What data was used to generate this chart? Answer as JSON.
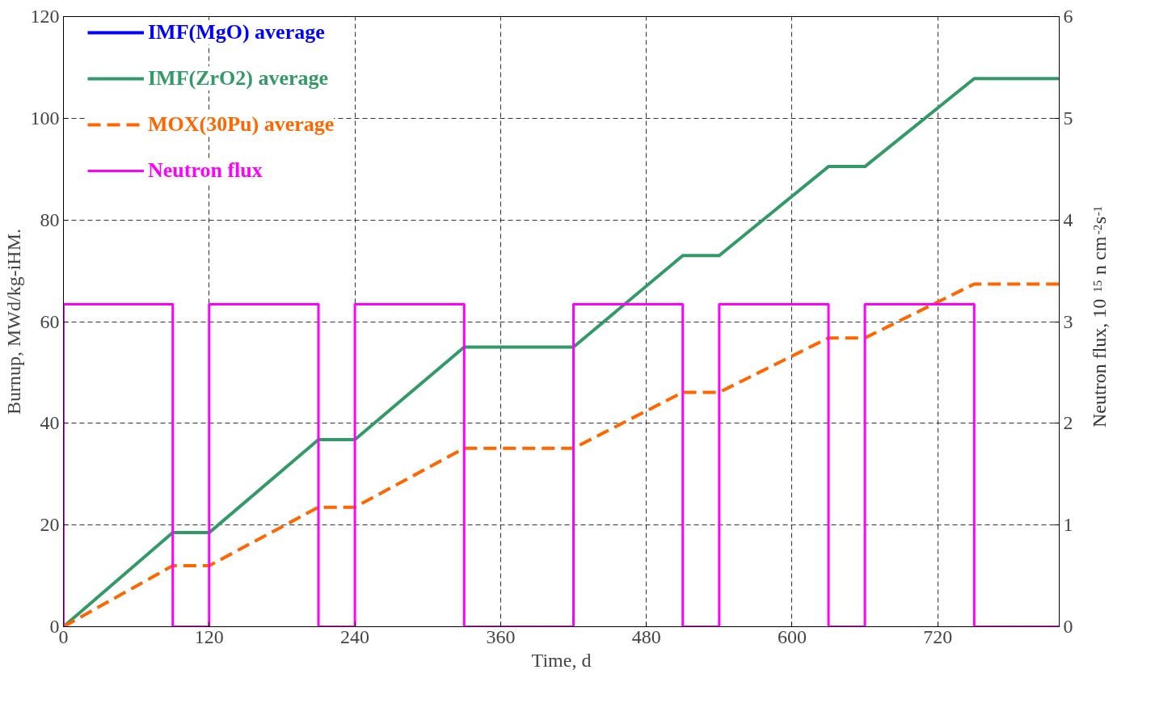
{
  "chart_data": {
    "type": "line",
    "xlabel": "Time, d",
    "ylabel": "Burnup, MWd/kg-iHM.",
    "y2label": "Neutron flux, 10$^{15}$ n cm$^{-2}$s$^{-1}$",
    "xlim": [
      0,
      820
    ],
    "xticks": [
      0,
      120,
      240,
      360,
      480,
      600,
      720
    ],
    "ylim": [
      0,
      120
    ],
    "yticks": [
      0,
      20,
      40,
      60,
      80,
      100,
      120
    ],
    "y2lim": [
      0,
      6
    ],
    "y2ticks": [
      0,
      1,
      2,
      3,
      4,
      5,
      6
    ],
    "grid": true,
    "legend": "top left",
    "series": [
      {
        "name": "IMF(MgO) average",
        "color": "#0000ff",
        "line_style": "solid"
      },
      {
        "name": "IMF(ZrO2) average",
        "color": "#339966",
        "line_style": "solid",
        "x": [
          0,
          90,
          120,
          210,
          240,
          330,
          420,
          510,
          540,
          630,
          660,
          750,
          820
        ],
        "values": [
          0,
          18.5,
          18.5,
          36.8,
          36.8,
          55,
          55,
          73,
          73,
          90.5,
          90.5,
          107.8,
          107.8
        ]
      },
      {
        "name": "MOX(30Pu) average",
        "color": "#ff6600",
        "line_style": "dashed",
        "x": [
          0,
          90,
          120,
          210,
          240,
          330,
          420,
          510,
          540,
          630,
          660,
          750,
          820
        ],
        "values": [
          0,
          12,
          12,
          23.5,
          23.5,
          35.1,
          35.1,
          46.1,
          46.1,
          56.8,
          56.8,
          67.4,
          67.4
        ]
      },
      {
        "name": "Neutron flux",
        "color": "#ff00ff",
        "type": "step",
        "axis": "y2",
        "line_style": "solid",
        "x": [
          0,
          0,
          90,
          120,
          210,
          240,
          330,
          420,
          510,
          540,
          630,
          660,
          750,
          820
        ],
        "values": [
          0,
          3.17,
          0,
          3.17,
          0,
          3.17,
          0,
          3.17,
          0,
          3.17,
          0,
          3.17,
          0,
          0
        ]
      }
    ]
  }
}
